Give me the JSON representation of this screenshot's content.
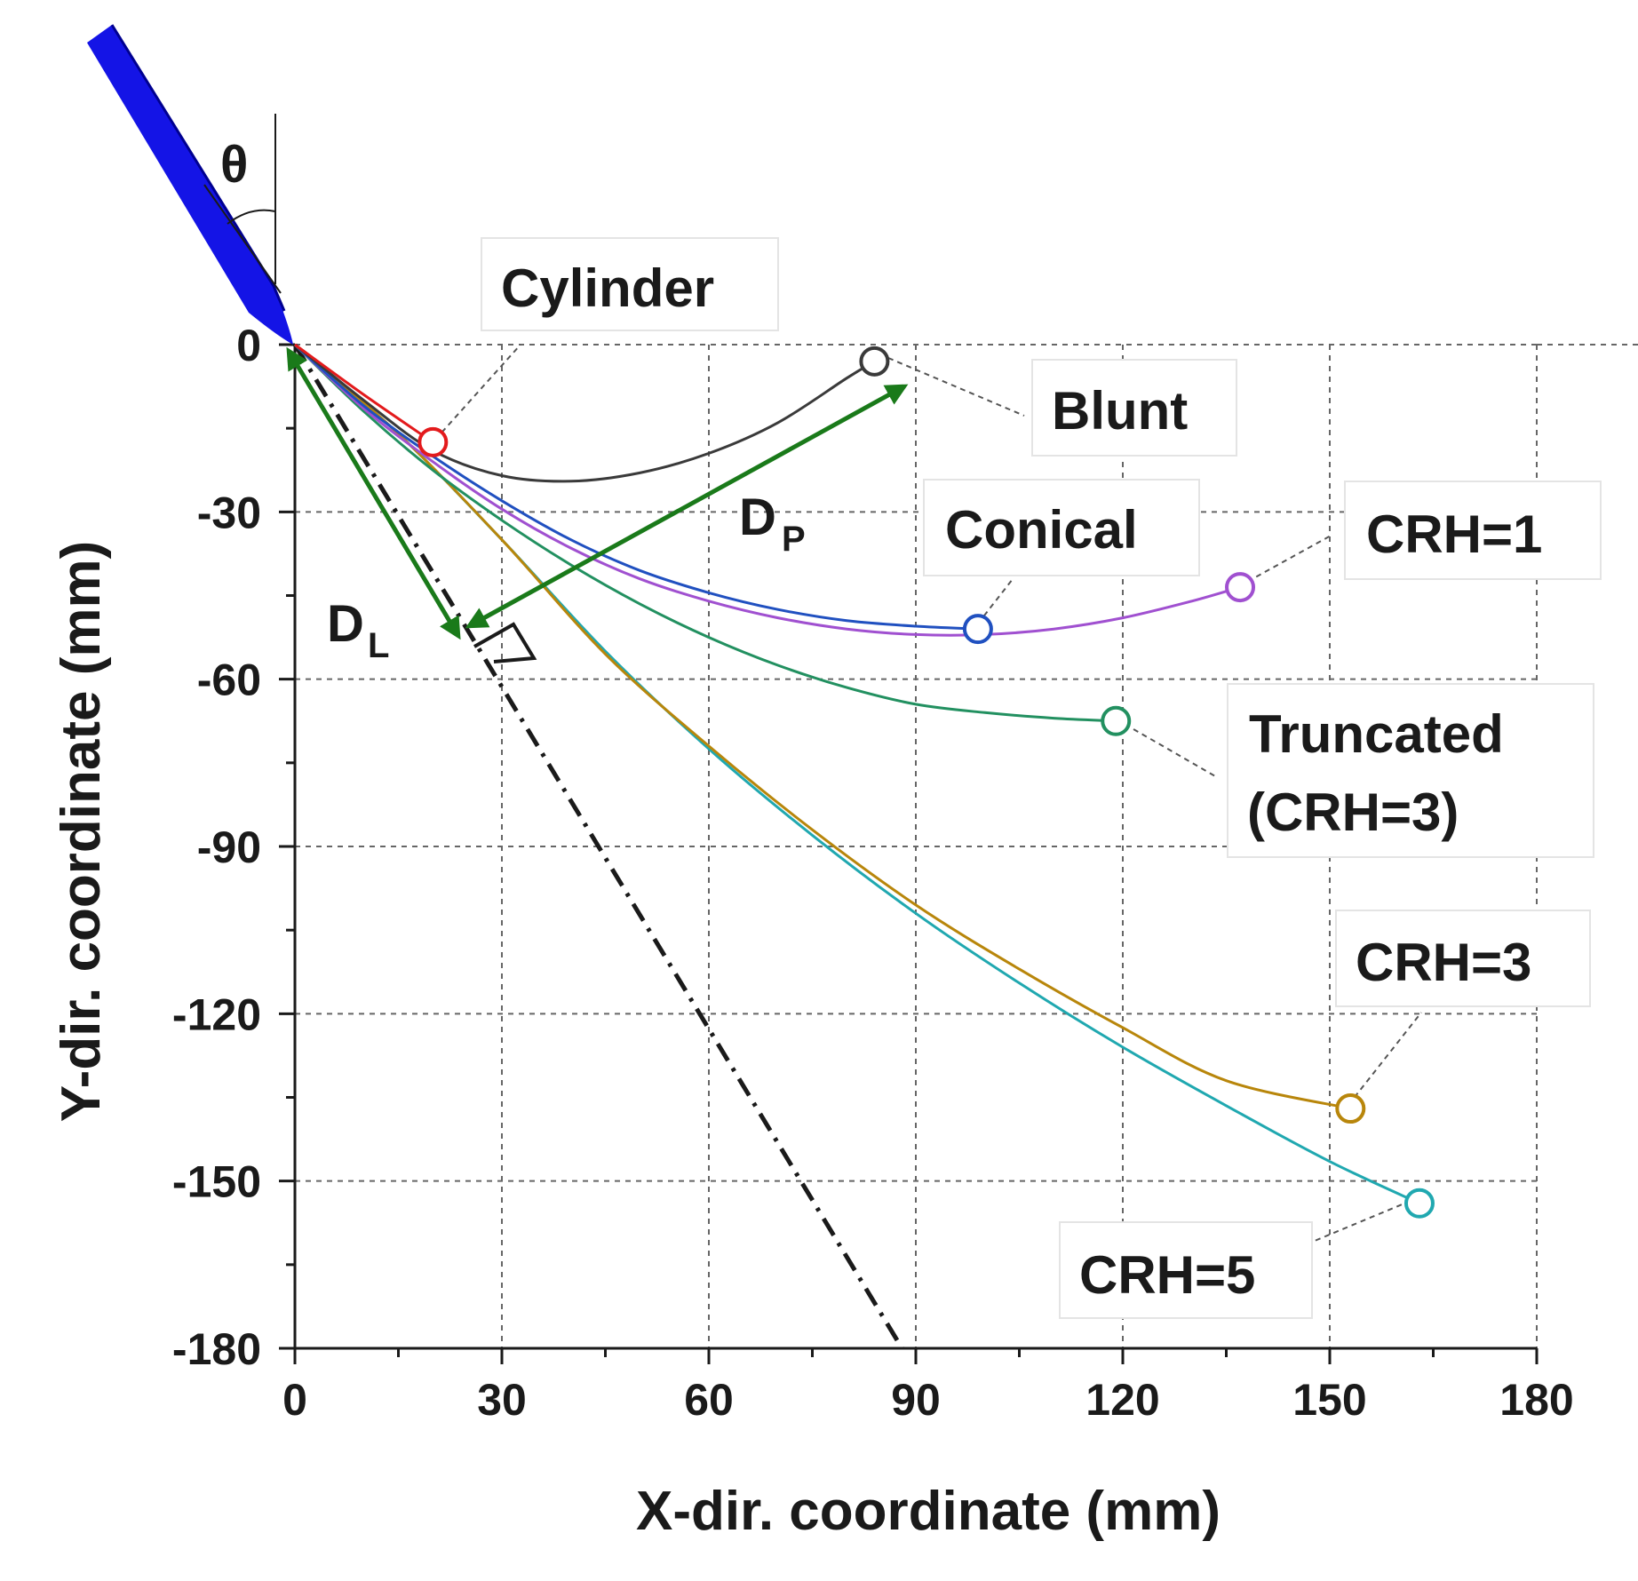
{
  "chart_data": {
    "type": "line",
    "title": "",
    "xlabel": "X-dir. coordinate (mm)",
    "ylabel": "Y-dir. coordinate (mm)",
    "xlim": [
      0,
      180
    ],
    "ylim": [
      -180,
      0
    ],
    "xticks": [
      0,
      30,
      60,
      90,
      120,
      150,
      180
    ],
    "xtick_labels": [
      "0",
      "30",
      "60",
      "90",
      "120",
      "150",
      "180"
    ],
    "yticks": [
      0,
      -30,
      -60,
      -90,
      -120,
      -150,
      -180
    ],
    "ytick_labels": [
      "0",
      "-30",
      "-60",
      "-90",
      "-120",
      "-150",
      "-180"
    ],
    "grid": true,
    "series": [
      {
        "name": "Cylinder",
        "color": "#e31a1c",
        "x": [
          0,
          10,
          20
        ],
        "y": [
          0,
          -9,
          -17.5
        ]
      },
      {
        "name": "Blunt",
        "color": "#3a3a3a",
        "x": [
          0,
          10,
          20,
          30,
          40,
          50,
          60,
          70,
          80,
          84
        ],
        "y": [
          0,
          -10,
          -19,
          -23.5,
          -24.5,
          -23,
          -19.5,
          -14,
          -6,
          -3
        ]
      },
      {
        "name": "Conical",
        "color": "#2050c0",
        "x": [
          0,
          10,
          20,
          30,
          40,
          50,
          60,
          70,
          80,
          90,
          99
        ],
        "y": [
          0,
          -11,
          -20,
          -28,
          -35,
          -40.5,
          -44.5,
          -47.5,
          -49.5,
          -50.5,
          -51
        ]
      },
      {
        "name": "CRH=1",
        "color": "#a050d0",
        "x": [
          0,
          10,
          20,
          30,
          40,
          50,
          60,
          70,
          80,
          90,
          100,
          110,
          120,
          130,
          137
        ],
        "y": [
          0,
          -11.5,
          -21,
          -29.5,
          -36.5,
          -42,
          -46,
          -49,
          -51,
          -52,
          -52,
          -51,
          -49,
          -46,
          -43.5
        ]
      },
      {
        "name": "Truncated (CRH=3)",
        "color": "#229060",
        "x": [
          0,
          10,
          20,
          30,
          40,
          50,
          60,
          70,
          80,
          90,
          100,
          110,
          119
        ],
        "y": [
          0,
          -12,
          -22.5,
          -31.5,
          -39.5,
          -46.5,
          -52.5,
          -57.5,
          -61.5,
          -64.5,
          -66,
          -67,
          -67.5
        ]
      },
      {
        "name": "CRH=3",
        "color": "#b8860b",
        "x": [
          0,
          15,
          30,
          45,
          60,
          75,
          90,
          105,
          120,
          135,
          153
        ],
        "y": [
          0,
          -16,
          -35,
          -55.5,
          -72,
          -87,
          -100.5,
          -112,
          -122.5,
          -132,
          -137
        ]
      },
      {
        "name": "CRH=5",
        "color": "#20a8b0",
        "x": [
          0,
          15,
          30,
          45,
          60,
          75,
          90,
          105,
          120,
          135,
          150,
          163
        ],
        "y": [
          0,
          -16,
          -35,
          -55,
          -72.5,
          -88,
          -102,
          -114.5,
          -126,
          -136.5,
          -146.5,
          -154
        ]
      }
    ],
    "annotations": {
      "cylinder": "Cylinder",
      "blunt": "Blunt",
      "conical": "Conical",
      "crh1": "CRH=1",
      "truncated_line1": "Truncated",
      "truncated_line2": "(CRH=3)",
      "crh3": "CRH=3",
      "crh5": "CRH=5",
      "theta": "θ",
      "dp_main": "D",
      "dp_sub": "P",
      "dl_main": "D",
      "dl_sub": "L"
    },
    "reference_line": {
      "style": "dash-dot",
      "x": [
        0,
        88
      ],
      "y": [
        0,
        -180
      ]
    },
    "colors": {
      "axis": "#1a1a1a",
      "grid": "#666666",
      "projectile": "#1414e6",
      "arrow": "#1a7a1a",
      "leader": "#555555"
    }
  }
}
